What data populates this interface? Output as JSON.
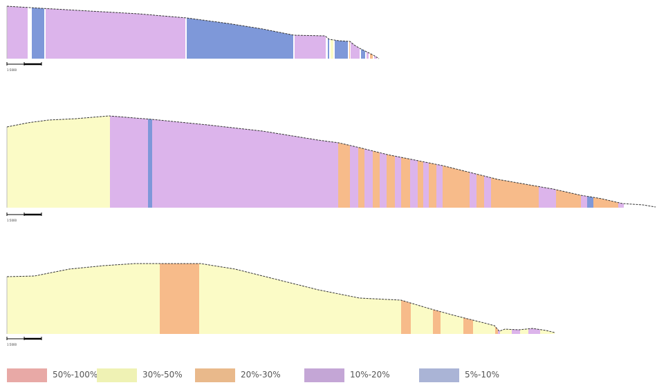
{
  "colors": {
    "c50_100": "#e8a6a6",
    "c30_50": "#fbfbc6",
    "c20_30": "#f7bb8a",
    "c10_20": "#dcb4eb",
    "c5_10": "#7e98d9",
    "swatch_50_100": "#e8a9a6",
    "swatch_30_50": "#eff2b4",
    "swatch_20_30": "#e9b98b",
    "swatch_10_20": "#c4a6d6",
    "swatch_5_10": "#aab4d6",
    "outline": "#333333"
  },
  "legend": [
    {
      "label": "50%-100%",
      "color_key": "swatch_50_100"
    },
    {
      "label": "30%-50%",
      "color_key": "swatch_30_50"
    },
    {
      "label": "20%-30%",
      "color_key": "swatch_20_30"
    },
    {
      "label": "10%-20%",
      "color_key": "swatch_10_20"
    },
    {
      "label": "5%-10%",
      "color_key": "swatch_5_10"
    }
  ],
  "profiles": [
    {
      "scale_label": "1:5000",
      "segments": [
        {
          "slope_class": "c10_20"
        },
        {
          "slope_class": "c5_10"
        },
        {
          "slope_class": "c10_20"
        },
        {
          "slope_class": "c5_10"
        },
        {
          "slope_class": "c10_20"
        },
        {
          "slope_class": "c5_10"
        },
        {
          "slope_class": "c30_50"
        },
        {
          "slope_class": "c5_10"
        },
        {
          "slope_class": "c20_30"
        },
        {
          "slope_class": "c10_20"
        },
        {
          "slope_class": "c5_10"
        },
        {
          "slope_class": "c10_20"
        },
        {
          "slope_class": "c20_30"
        },
        {
          "slope_class": "c10_20"
        },
        {
          "slope_class": "c20_30"
        },
        {
          "slope_class": "c10_20"
        },
        {
          "slope_class": "c20_30"
        },
        {
          "slope_class": "c10_20"
        }
      ]
    },
    {
      "scale_label": "1:5000",
      "segments": [
        {
          "slope_class": "c30_50"
        },
        {
          "slope_class": "c10_20"
        },
        {
          "slope_class": "c5_10"
        },
        {
          "slope_class": "c10_20"
        },
        {
          "slope_class": "c20_30"
        },
        {
          "slope_class": "c10_20"
        },
        {
          "slope_class": "c20_30"
        },
        {
          "slope_class": "c10_20"
        },
        {
          "slope_class": "c20_30"
        },
        {
          "slope_class": "c10_20"
        },
        {
          "slope_class": "c20_30"
        },
        {
          "slope_class": "c10_20"
        },
        {
          "slope_class": "c20_30"
        },
        {
          "slope_class": "c10_20"
        },
        {
          "slope_class": "c20_30"
        },
        {
          "slope_class": "c10_20"
        },
        {
          "slope_class": "c20_30"
        },
        {
          "slope_class": "c10_20"
        },
        {
          "slope_class": "c20_30"
        },
        {
          "slope_class": "c10_20"
        },
        {
          "slope_class": "c20_30"
        },
        {
          "slope_class": "c10_20"
        },
        {
          "slope_class": "c20_30"
        },
        {
          "slope_class": "c10_20"
        },
        {
          "slope_class": "c20_30"
        },
        {
          "slope_class": "c10_20"
        },
        {
          "slope_class": "c5_10"
        },
        {
          "slope_class": "c20_30"
        },
        {
          "slope_class": "c10_20"
        }
      ]
    },
    {
      "scale_label": "1:5000",
      "segments": [
        {
          "slope_class": "c30_50"
        },
        {
          "slope_class": "c20_30"
        },
        {
          "slope_class": "c30_50"
        },
        {
          "slope_class": "c20_30"
        },
        {
          "slope_class": "c30_50"
        },
        {
          "slope_class": "c20_30"
        },
        {
          "slope_class": "c30_50"
        },
        {
          "slope_class": "c20_30"
        },
        {
          "slope_class": "c30_50"
        },
        {
          "slope_class": "c20_30"
        },
        {
          "slope_class": "c10_20"
        },
        {
          "slope_class": "c30_50"
        },
        {
          "slope_class": "c10_20"
        },
        {
          "slope_class": "c30_50"
        },
        {
          "slope_class": "c10_20"
        },
        {
          "slope_class": "c30_50"
        }
      ]
    }
  ]
}
